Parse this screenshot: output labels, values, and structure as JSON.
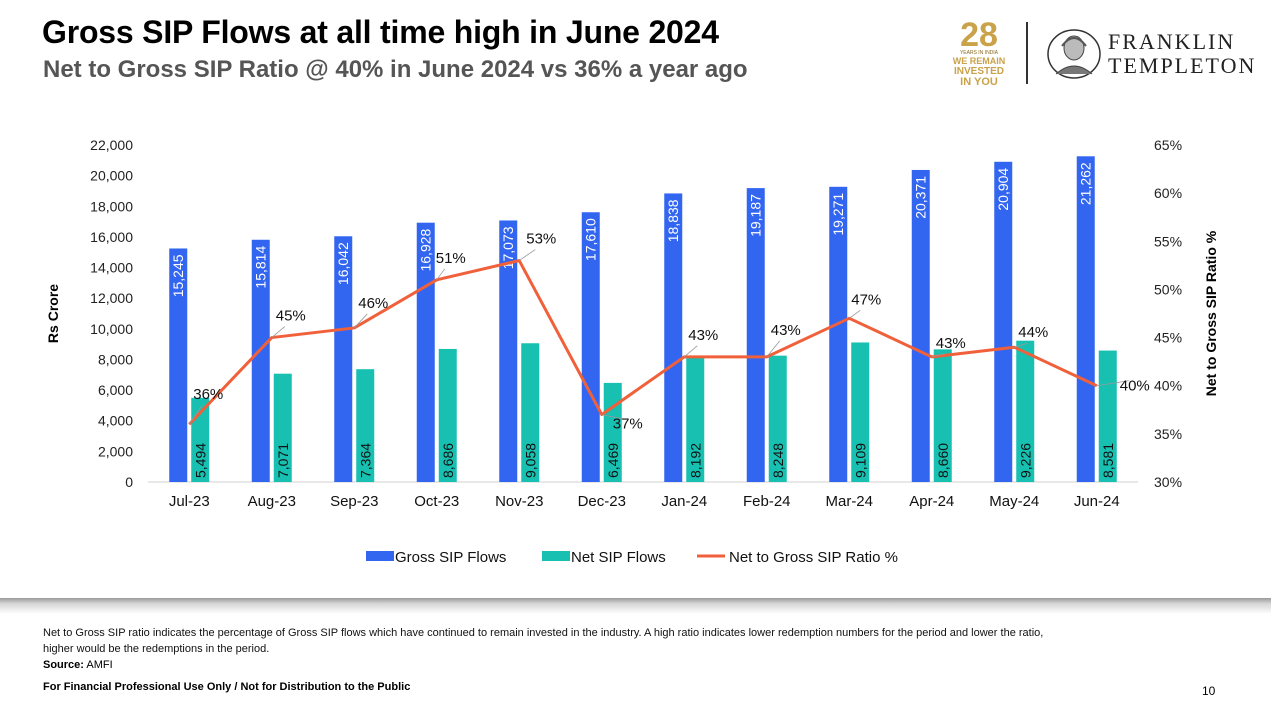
{
  "header": {
    "title": "Gross SIP Flows at all time high in June 2024",
    "subtitle": "Net to Gross SIP Ratio @ 40% in June 2024 vs 36% a year ago"
  },
  "logo": {
    "badge_number": "28",
    "badge_line1": "YEARS IN INDIA",
    "badge_line2": "WE REMAIN",
    "badge_line3": "INVESTED",
    "badge_line4": "IN YOU",
    "brand_line1": "FRANKLIN",
    "brand_line2": "TEMPLETON"
  },
  "chart_data": {
    "type": "bar",
    "categories": [
      "Jul-23",
      "Aug-23",
      "Sep-23",
      "Oct-23",
      "Nov-23",
      "Dec-23",
      "Jan-24",
      "Feb-24",
      "Mar-24",
      "Apr-24",
      "May-24",
      "Jun-24"
    ],
    "series": [
      {
        "name": "Gross SIP Flows",
        "kind": "bar",
        "axis": "left",
        "color": "#3366F0",
        "values": [
          15245,
          15814,
          16042,
          16928,
          17073,
          17610,
          18838,
          19187,
          19271,
          20371,
          20904,
          21262
        ],
        "labels": [
          "15,245",
          "15,814",
          "16,042",
          "16,928",
          "17,073",
          "17,610",
          "18,838",
          "19,187",
          "19,271",
          "20,371",
          "20,904",
          "21,262"
        ]
      },
      {
        "name": "Net SIP Flows",
        "kind": "bar",
        "axis": "left",
        "color": "#17C0B0",
        "values": [
          5494,
          7071,
          7364,
          8686,
          9058,
          6469,
          8192,
          8248,
          9109,
          8660,
          9226,
          8581
        ],
        "labels": [
          "5,494",
          "7,071",
          "7,364",
          "8,686",
          "9,058",
          "6,469",
          "8,192",
          "8,248",
          "9,109",
          "8,660",
          "9,226",
          "8,581"
        ]
      },
      {
        "name": "Net to Gross SIP Ratio %",
        "kind": "line",
        "axis": "right",
        "color": "#F0603A",
        "values": [
          36,
          45,
          46,
          51,
          53,
          37,
          43,
          43,
          47,
          43,
          44,
          40
        ],
        "labels": [
          "36%",
          "45%",
          "46%",
          "51%",
          "53%",
          "37%",
          "43%",
          "43%",
          "47%",
          "43%",
          "44%",
          "40%"
        ]
      }
    ],
    "ylabel": "Rs Crore",
    "y2label": "Net to Gross SIP Ratio %",
    "ylim": [
      0,
      22000
    ],
    "y2lim": [
      30,
      65
    ],
    "yticks": [
      "0",
      "2,000",
      "4,000",
      "6,000",
      "8,000",
      "10,000",
      "12,000",
      "14,000",
      "16,000",
      "18,000",
      "20,000",
      "22,000"
    ],
    "y2ticks": [
      "30%",
      "35%",
      "40%",
      "45%",
      "50%",
      "55%",
      "60%",
      "65%"
    ],
    "legend_position": "bottom",
    "grid": false
  },
  "footer": {
    "note": "Net to Gross SIP ratio indicates the percentage of Gross SIP flows which have continued to remain invested in the industry. A high ratio indicates lower redemption numbers for the period and lower the ratio, higher would be the redemptions in the period.",
    "source_label": "Source:",
    "source_value": "AMFI",
    "disclaimer": "For Financial Professional Use Only / Not for Distribution to the Public",
    "page_number": "10"
  }
}
